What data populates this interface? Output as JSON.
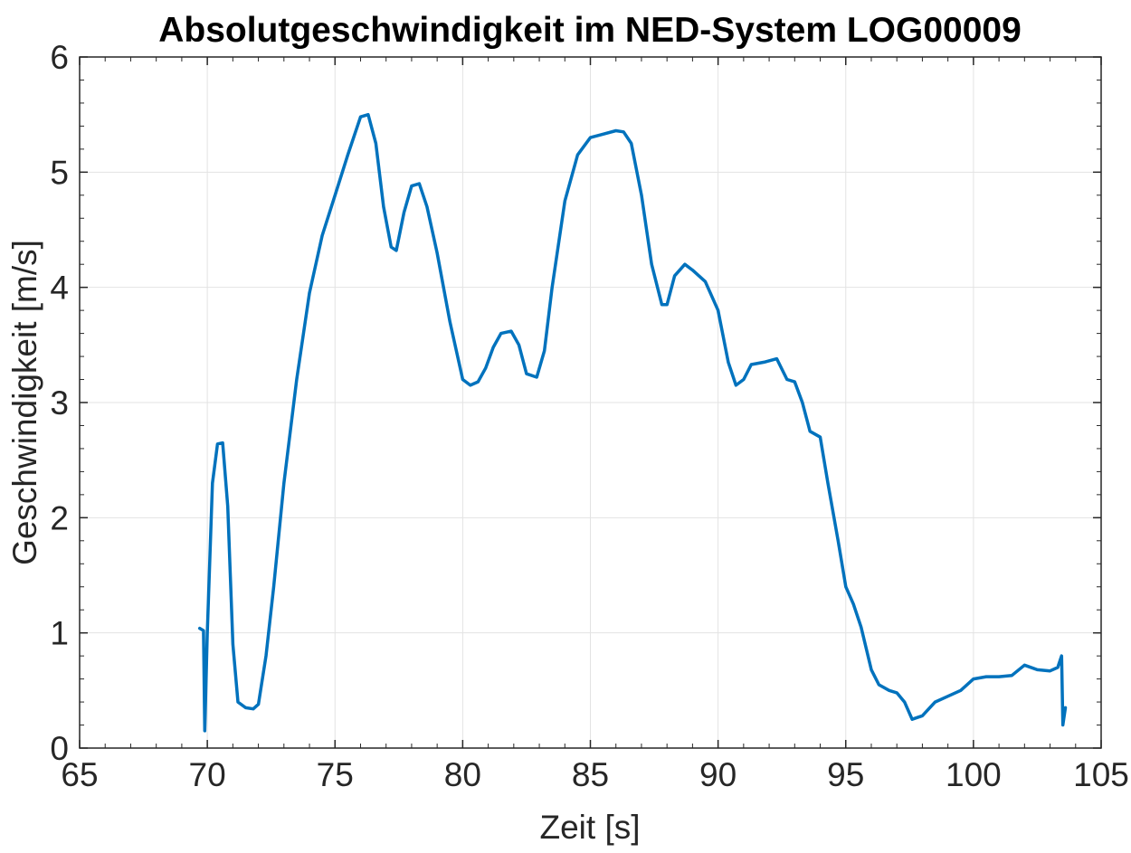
{
  "chart_data": {
    "type": "line",
    "title": "Absolutgeschwindigkeit im NED-System LOG00009",
    "xlabel": "Zeit [s]",
    "ylabel": "Geschwindigkeit [m/s]",
    "xlim": [
      65,
      105
    ],
    "ylim": [
      0,
      6
    ],
    "xticks": [
      65,
      70,
      75,
      80,
      85,
      90,
      95,
      100,
      105
    ],
    "xtick_labels": [
      "65",
      "70",
      "75",
      "80",
      "85",
      "90",
      "95",
      "100",
      "105"
    ],
    "yticks": [
      0,
      1,
      2,
      3,
      4,
      5,
      6
    ],
    "ytick_labels": [
      "0",
      "1",
      "2",
      "3",
      "4",
      "5",
      "6"
    ],
    "grid": true,
    "series": [
      {
        "color": "#0072bd",
        "x": [
          69.7,
          69.85,
          69.9,
          70.0,
          70.2,
          70.4,
          70.6,
          70.8,
          71.0,
          71.2,
          71.5,
          71.8,
          72.0,
          72.3,
          72.6,
          73.0,
          73.5,
          74.0,
          74.5,
          75.0,
          75.5,
          76.0,
          76.3,
          76.6,
          76.9,
          77.2,
          77.4,
          77.7,
          78.0,
          78.3,
          78.6,
          79.0,
          79.5,
          80.0,
          80.3,
          80.6,
          80.9,
          81.2,
          81.5,
          81.9,
          82.2,
          82.5,
          82.9,
          83.2,
          83.5,
          84.0,
          84.5,
          85.0,
          85.5,
          86.0,
          86.3,
          86.6,
          87.0,
          87.4,
          87.8,
          88.0,
          88.3,
          88.7,
          89.0,
          89.5,
          90.0,
          90.4,
          90.7,
          91.0,
          91.3,
          91.8,
          92.3,
          92.7,
          93.0,
          93.3,
          93.6,
          94.0,
          94.3,
          94.7,
          95.0,
          95.3,
          95.6,
          96.0,
          96.3,
          96.7,
          97.0,
          97.3,
          97.6,
          98.0,
          98.5,
          99.0,
          99.5,
          100.0,
          100.5,
          101.0,
          101.5,
          102.0,
          102.5,
          103.0,
          103.3,
          103.45,
          103.5,
          103.6
        ],
        "y": [
          1.04,
          1.02,
          0.15,
          1.0,
          2.3,
          2.64,
          2.65,
          2.1,
          0.9,
          0.4,
          0.35,
          0.34,
          0.38,
          0.8,
          1.4,
          2.3,
          3.2,
          3.95,
          4.45,
          4.8,
          5.15,
          5.48,
          5.5,
          5.25,
          4.7,
          4.35,
          4.32,
          4.65,
          4.88,
          4.9,
          4.7,
          4.3,
          3.7,
          3.2,
          3.15,
          3.18,
          3.3,
          3.48,
          3.6,
          3.62,
          3.5,
          3.25,
          3.22,
          3.45,
          4.0,
          4.75,
          5.15,
          5.3,
          5.33,
          5.36,
          5.35,
          5.25,
          4.8,
          4.2,
          3.85,
          3.85,
          4.1,
          4.2,
          4.15,
          4.05,
          3.8,
          3.35,
          3.15,
          3.2,
          3.33,
          3.35,
          3.38,
          3.2,
          3.18,
          3.0,
          2.75,
          2.7,
          2.3,
          1.8,
          1.4,
          1.25,
          1.05,
          0.68,
          0.55,
          0.5,
          0.48,
          0.4,
          0.25,
          0.28,
          0.4,
          0.45,
          0.5,
          0.6,
          0.62,
          0.62,
          0.63,
          0.72,
          0.68,
          0.67,
          0.7,
          0.8,
          0.2,
          0.35
        ]
      }
    ]
  }
}
